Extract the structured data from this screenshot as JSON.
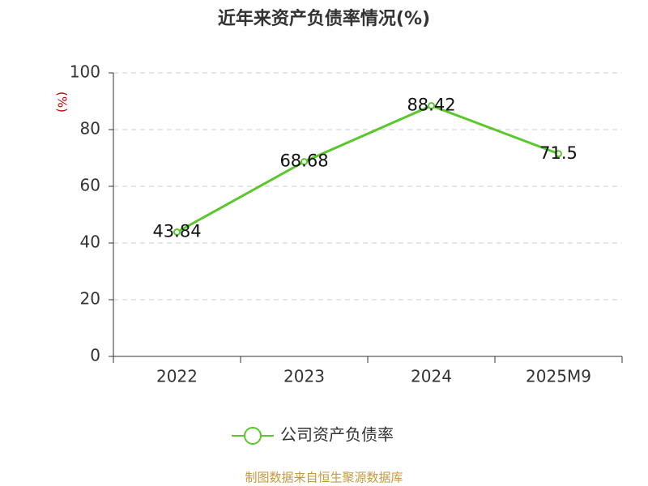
{
  "chart_data": {
    "type": "line",
    "title": "近年来资产负债率情况(%)",
    "y_label": "(%)",
    "categories": [
      "2022",
      "2023",
      "2024",
      "2025M9"
    ],
    "series": [
      {
        "name": "公司资产负债率",
        "color": "#5ac72b",
        "values": [
          43.84,
          68.68,
          88.42,
          71.5
        ]
      }
    ],
    "ylim": [
      0,
      100
    ],
    "yticks": [
      0,
      20,
      40,
      60,
      80,
      100
    ],
    "grid": true,
    "legend": "bottom",
    "source": "制图数据来自恒生聚源数据库"
  }
}
